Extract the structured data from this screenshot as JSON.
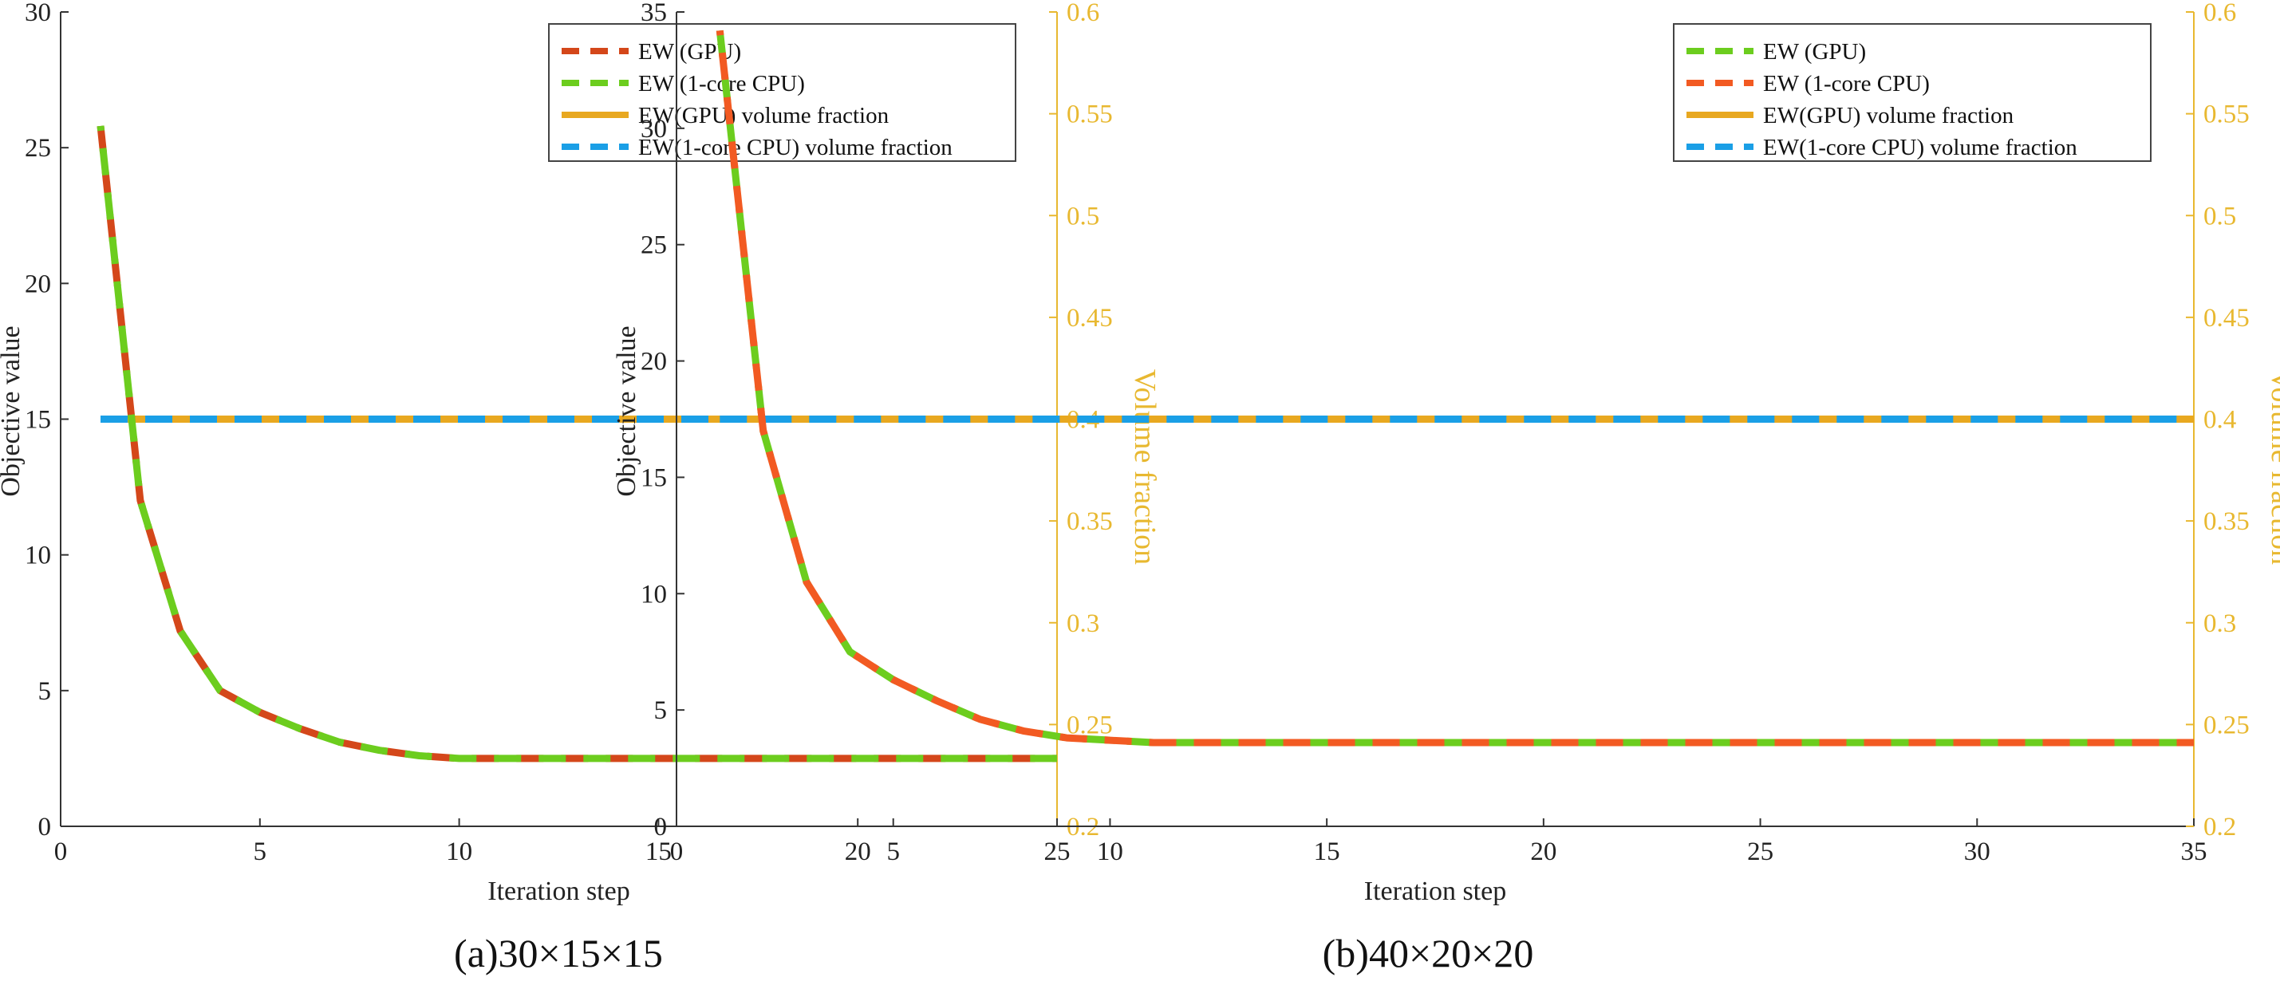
{
  "chart_data": [
    {
      "type": "line",
      "caption": "(a)30×15×15",
      "xlabel": "Iteration step",
      "ylabel": "Objective value",
      "ylabel_right": "Volume fraction",
      "xlim": [
        0,
        25
      ],
      "ylim": [
        0,
        30
      ],
      "ylim_right": [
        0.2,
        0.6
      ],
      "x_ticks": [
        "0",
        "5",
        "10",
        "15",
        "20",
        "25"
      ],
      "y_ticks": [
        "0",
        "5",
        "10",
        "15",
        "20",
        "25",
        "30"
      ],
      "y_ticks_right": [
        "0.2",
        "0.25",
        "0.3",
        "0.35",
        "0.4",
        "0.45",
        "0.5",
        "0.55",
        "0.6"
      ],
      "legend_position": "top-right",
      "series": [
        {
          "name": "EW (GPU)",
          "axis": "left",
          "style": "dashed",
          "color": "#d4471a",
          "x": [
            1,
            2,
            3,
            4,
            5,
            6,
            7,
            8,
            9,
            10,
            11,
            12,
            13,
            14,
            15,
            16,
            17,
            18,
            19,
            20,
            21,
            22,
            23,
            24,
            25
          ],
          "values": [
            25.8,
            12.0,
            7.2,
            5.0,
            4.2,
            3.6,
            3.1,
            2.8,
            2.6,
            2.5,
            2.5,
            2.5,
            2.5,
            2.5,
            2.5,
            2.5,
            2.5,
            2.5,
            2.5,
            2.5,
            2.5,
            2.5,
            2.5,
            2.5,
            2.5
          ]
        },
        {
          "name": "EW (1-core CPU)",
          "axis": "left",
          "style": "dashed",
          "color": "#6ccd1e",
          "x": [
            1,
            2,
            3,
            4,
            5,
            6,
            7,
            8,
            9,
            10,
            11,
            12,
            13,
            14,
            15,
            16,
            17,
            18,
            19,
            20,
            21,
            22,
            23,
            24,
            25
          ],
          "values": [
            25.8,
            12.0,
            7.2,
            5.0,
            4.2,
            3.6,
            3.1,
            2.8,
            2.6,
            2.5,
            2.5,
            2.5,
            2.5,
            2.5,
            2.5,
            2.5,
            2.5,
            2.5,
            2.5,
            2.5,
            2.5,
            2.5,
            2.5,
            2.5,
            2.5
          ]
        },
        {
          "name": "EW(GPU) volume fraction",
          "axis": "right",
          "style": "solid",
          "color": "#e8a820",
          "x": [
            1,
            25
          ],
          "values": [
            0.4,
            0.4
          ]
        },
        {
          "name": "EW(1-core CPU) volume fraction",
          "axis": "right",
          "style": "dashed",
          "color": "#1a9fe6",
          "x": [
            1,
            25
          ],
          "values": [
            0.4,
            0.4
          ]
        }
      ]
    },
    {
      "type": "line",
      "caption": "(b)40×20×20",
      "xlabel": "Iteration step",
      "ylabel": "Objective value",
      "ylabel_right": "Volume fraction",
      "xlim": [
        0,
        35
      ],
      "ylim": [
        0,
        35
      ],
      "ylim_right": [
        0.2,
        0.6
      ],
      "x_ticks": [
        "0",
        "5",
        "10",
        "15",
        "20",
        "25",
        "30",
        "35"
      ],
      "y_ticks": [
        "0",
        "5",
        "10",
        "15",
        "20",
        "25",
        "30",
        "35"
      ],
      "y_ticks_right": [
        "0.2",
        "0.25",
        "0.3",
        "0.35",
        "0.4",
        "0.45",
        "0.5",
        "0.55",
        "0.6"
      ],
      "legend_position": "top-right",
      "series": [
        {
          "name": "EW (GPU)",
          "axis": "left",
          "style": "dashed",
          "color": "#6ccd1e",
          "x": [
            1,
            2,
            3,
            4,
            5,
            6,
            7,
            8,
            9,
            10,
            11,
            12,
            13,
            14,
            15,
            16,
            17,
            18,
            19,
            20,
            21,
            22,
            23,
            24,
            25,
            26,
            27,
            28,
            29,
            30,
            31,
            32,
            33,
            34,
            35
          ],
          "values": [
            34.2,
            17.0,
            10.5,
            7.5,
            6.3,
            5.4,
            4.6,
            4.1,
            3.8,
            3.7,
            3.6,
            3.6,
            3.6,
            3.6,
            3.6,
            3.6,
            3.6,
            3.6,
            3.6,
            3.6,
            3.6,
            3.6,
            3.6,
            3.6,
            3.6,
            3.6,
            3.6,
            3.6,
            3.6,
            3.6,
            3.6,
            3.6,
            3.6,
            3.6,
            3.6
          ]
        },
        {
          "name": "EW (1-core CPU)",
          "axis": "left",
          "style": "dashed",
          "color": "#f25a22",
          "x": [
            1,
            2,
            3,
            4,
            5,
            6,
            7,
            8,
            9,
            10,
            11,
            12,
            13,
            14,
            15,
            16,
            17,
            18,
            19,
            20,
            21,
            22,
            23,
            24,
            25,
            26,
            27,
            28,
            29,
            30,
            31,
            32,
            33,
            34,
            35
          ],
          "values": [
            34.2,
            17.0,
            10.5,
            7.5,
            6.3,
            5.4,
            4.6,
            4.1,
            3.8,
            3.7,
            3.6,
            3.6,
            3.6,
            3.6,
            3.6,
            3.6,
            3.6,
            3.6,
            3.6,
            3.6,
            3.6,
            3.6,
            3.6,
            3.6,
            3.6,
            3.6,
            3.6,
            3.6,
            3.6,
            3.6,
            3.6,
            3.6,
            3.6,
            3.6,
            3.6
          ]
        },
        {
          "name": "EW(GPU) volume fraction",
          "axis": "right",
          "style": "solid",
          "color": "#e8a820",
          "x": [
            1,
            35
          ],
          "values": [
            0.4,
            0.4
          ]
        },
        {
          "name": "EW(1-core CPU) volume fraction",
          "axis": "right",
          "style": "dashed",
          "color": "#1a9fe6",
          "x": [
            1,
            35
          ],
          "values": [
            0.4,
            0.4
          ]
        }
      ]
    }
  ]
}
